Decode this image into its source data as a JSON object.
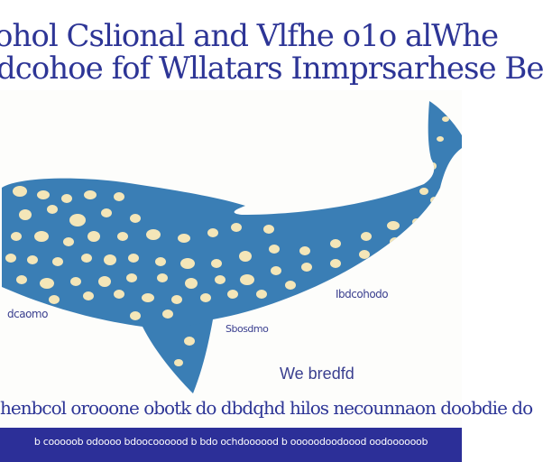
{
  "colors": {
    "title_text": "#2d3596",
    "whale_body": "#3a7eb5",
    "whale_spots": "#f4e6b8",
    "label_text": "#3a3f8f",
    "footer_background": "#2c2f98",
    "footer_text": "#ffffff",
    "page_background": "#fdfdfb"
  },
  "header": {
    "title_line_1": "ohol Cslional and Vlfhe o1o alWhe",
    "title_line_2": "dcohoe fof Wllatars Inmprsarhese Be"
  },
  "illustration": {
    "subject": "whale-with-spots",
    "left_note": "dcaomo",
    "right_note": "Ibdcohodo",
    "fin_note": "Sbosdmo",
    "caption": "We bredfd"
  },
  "body": {
    "text": "henbcol orooone obotk do dbdqhd hilos necounnaon doobdie do"
  },
  "footer": {
    "text": "b cooooob odoooo bdoocoooood b bdo ochdoooood b ooooodoodoood oodoooooob"
  }
}
